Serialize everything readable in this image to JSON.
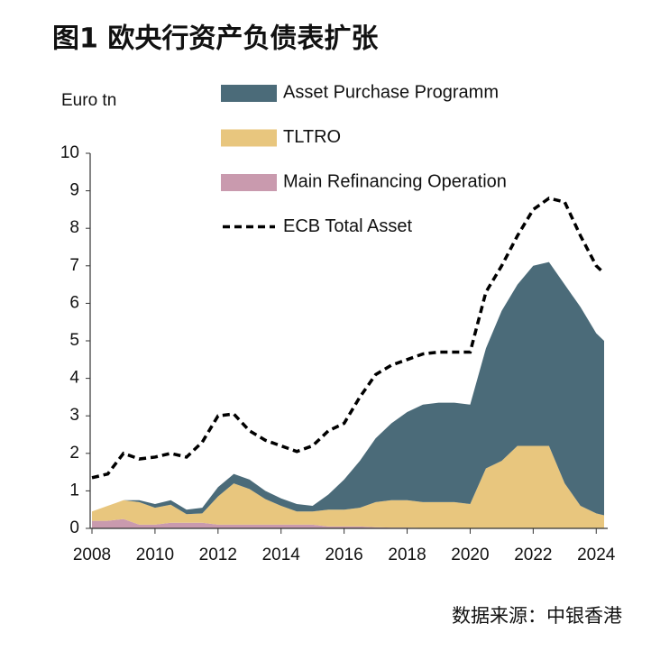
{
  "chart_data": {
    "type": "area",
    "title": "图1 欧央行资产负债表扩张",
    "ylabel": "Euro tn",
    "source": "数据来源：中银香港",
    "stacked": true,
    "x": [
      2008,
      2008.5,
      2009,
      2009.5,
      2010,
      2010.5,
      2011,
      2011.5,
      2012,
      2012.5,
      2013,
      2013.5,
      2014,
      2014.5,
      2015,
      2015.5,
      2016,
      2016.5,
      2017,
      2017.5,
      2018,
      2018.5,
      2019,
      2019.5,
      2020,
      2020.5,
      2021,
      2021.5,
      2022,
      2022.5,
      2023,
      2023.5,
      2024,
      2024.25
    ],
    "xlim": [
      2008,
      2024.25
    ],
    "xticks": [
      2008,
      2010,
      2012,
      2014,
      2016,
      2018,
      2020,
      2022,
      2024
    ],
    "ylim": [
      0,
      10
    ],
    "yticks": [
      0,
      1,
      2,
      3,
      4,
      5,
      6,
      7,
      8,
      9,
      10
    ],
    "series": [
      {
        "name": "Asset Purchase Programm",
        "kind": "area",
        "color": "#4b6b79",
        "values": [
          0,
          0,
          0,
          0.05,
          0.1,
          0.12,
          0.12,
          0.15,
          0.25,
          0.25,
          0.25,
          0.22,
          0.2,
          0.2,
          0.15,
          0.4,
          0.8,
          1.25,
          1.7,
          2.05,
          2.35,
          2.6,
          2.65,
          2.65,
          2.65,
          3.2,
          4.0,
          4.3,
          4.8,
          4.9,
          5.3,
          5.3,
          4.8,
          4.65
        ]
      },
      {
        "name": "TLTRO",
        "kind": "area",
        "color": "#e8c67e",
        "values": [
          0.25,
          0.4,
          0.5,
          0.6,
          0.45,
          0.48,
          0.23,
          0.25,
          0.75,
          1.1,
          0.95,
          0.68,
          0.5,
          0.35,
          0.35,
          0.45,
          0.45,
          0.5,
          0.67,
          0.73,
          0.73,
          0.69,
          0.69,
          0.69,
          0.64,
          1.59,
          1.8,
          2.2,
          2.2,
          2.2,
          1.2,
          0.59,
          0.39,
          0.34
        ]
      },
      {
        "name": "Main Refinancing Operation",
        "kind": "area",
        "color": "#c99aae",
        "values": [
          0.2,
          0.2,
          0.25,
          0.1,
          0.1,
          0.15,
          0.15,
          0.15,
          0.1,
          0.1,
          0.1,
          0.1,
          0.1,
          0.1,
          0.1,
          0.05,
          0.05,
          0.05,
          0.03,
          0.02,
          0.02,
          0.01,
          0.01,
          0.01,
          0.01,
          0.01,
          0,
          0,
          0,
          0,
          0,
          0.01,
          0.01,
          0.01
        ]
      },
      {
        "name": "ECB Total Asset",
        "kind": "line",
        "dashed": true,
        "color": "#000000",
        "values": [
          1.35,
          1.45,
          2.0,
          1.85,
          1.9,
          2.0,
          1.9,
          2.3,
          3.0,
          3.05,
          2.6,
          2.35,
          2.2,
          2.05,
          2.2,
          2.6,
          2.8,
          3.5,
          4.1,
          4.35,
          4.5,
          4.65,
          4.7,
          4.7,
          4.7,
          6.3,
          7.0,
          7.8,
          8.5,
          8.8,
          8.7,
          7.8,
          7.0,
          6.8
        ]
      }
    ]
  }
}
